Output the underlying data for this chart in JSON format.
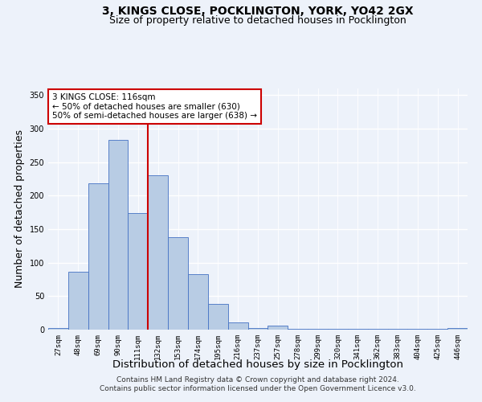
{
  "title_line1": "3, KINGS CLOSE, POCKLINGTON, YORK, YO42 2GX",
  "title_line2": "Size of property relative to detached houses in Pocklington",
  "xlabel": "Distribution of detached houses by size in Pocklington",
  "ylabel": "Number of detached properties",
  "bar_labels": [
    "27sqm",
    "48sqm",
    "69sqm",
    "90sqm",
    "111sqm",
    "132sqm",
    "153sqm",
    "174sqm",
    "195sqm",
    "216sqm",
    "237sqm",
    "257sqm",
    "278sqm",
    "299sqm",
    "320sqm",
    "341sqm",
    "362sqm",
    "383sqm",
    "404sqm",
    "425sqm",
    "446sqm"
  ],
  "bar_values": [
    2,
    86,
    219,
    283,
    174,
    231,
    138,
    83,
    38,
    11,
    2,
    6,
    1,
    1,
    1,
    1,
    1,
    1,
    1,
    1,
    2
  ],
  "bar_color": "#b8cce4",
  "bar_edge_color": "#4472c4",
  "vline_x_idx": 4,
  "vline_color": "#cc0000",
  "annotation_title": "3 KINGS CLOSE: 116sqm",
  "annotation_line2": "← 50% of detached houses are smaller (630)",
  "annotation_line3": "50% of semi-detached houses are larger (638) →",
  "annotation_box_color": "#ffffff",
  "annotation_box_edge": "#cc0000",
  "ylim": [
    0,
    360
  ],
  "yticks": [
    0,
    50,
    100,
    150,
    200,
    250,
    300,
    350
  ],
  "footer_line1": "Contains HM Land Registry data © Crown copyright and database right 2024.",
  "footer_line2": "Contains public sector information licensed under the Open Government Licence v3.0.",
  "background_color": "#edf2fa",
  "grid_color": "#ffffff",
  "title_fontsize": 10,
  "subtitle_fontsize": 9,
  "axis_label_fontsize": 9,
  "tick_fontsize": 6.5,
  "annotation_fontsize": 7.5,
  "footer_fontsize": 6.5
}
